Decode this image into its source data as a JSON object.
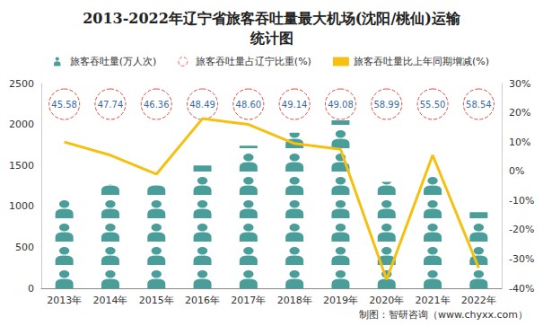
{
  "chart_data": {
    "type": "bar",
    "title": "2013-2022年辽宁省旅客吞吐量最大机场(沈阳/桃仙)运输统计图",
    "source": "制图：智研咨询（www.chyxx.com）",
    "categories": [
      "2013年",
      "2014年",
      "2015年",
      "2016年",
      "2017年",
      "2018年",
      "2019年",
      "2020年",
      "2021年",
      "2022年"
    ],
    "series": [
      {
        "name": "旅客吞吐量(万人次)",
        "type": "bar",
        "color": "#4a9e9a",
        "marker": "person",
        "values": [
          1130,
          1270,
          1260,
          1500,
          1740,
          1900,
          2050,
          1300,
          1390,
          930
        ]
      },
      {
        "name": "旅客吞吐量占辽宁比重(%)",
        "type": "label",
        "color": "#e0463b",
        "marker": "dashed_circle",
        "values": [
          45.58,
          47.74,
          46.36,
          48.49,
          48.6,
          49.14,
          49.08,
          58.99,
          55.5,
          58.54
        ],
        "value_labels": [
          "45.58",
          "47.74",
          "46.36",
          "48.49",
          "48.60",
          "49.14",
          "49.08",
          "58.99",
          "55.50",
          "58.54"
        ]
      },
      {
        "name": "旅客吞吐量比上年同期增减(%)",
        "type": "line",
        "axis": "y2",
        "color": "#f5c010",
        "values": [
          10,
          5.5,
          -1,
          18,
          16,
          9.5,
          7.5,
          -37,
          5.5,
          -33
        ]
      }
    ],
    "ylim": [
      0,
      2500
    ],
    "yticks": [
      0,
      500,
      1000,
      1500,
      2000,
      2500
    ],
    "y2lim": [
      -40,
      30
    ],
    "y2ticks": [
      {
        "value": -40,
        "label": "-40%"
      },
      {
        "value": -30,
        "label": "-30%"
      },
      {
        "value": -20,
        "label": "-20%"
      },
      {
        "value": -10,
        "label": "-10%"
      },
      {
        "value": 0,
        "label": "0%"
      },
      {
        "value": 10,
        "label": "10%"
      },
      {
        "value": 20,
        "label": "20%"
      },
      {
        "value": 30,
        "label": "30%"
      }
    ],
    "grid": false,
    "legend": "top"
  }
}
